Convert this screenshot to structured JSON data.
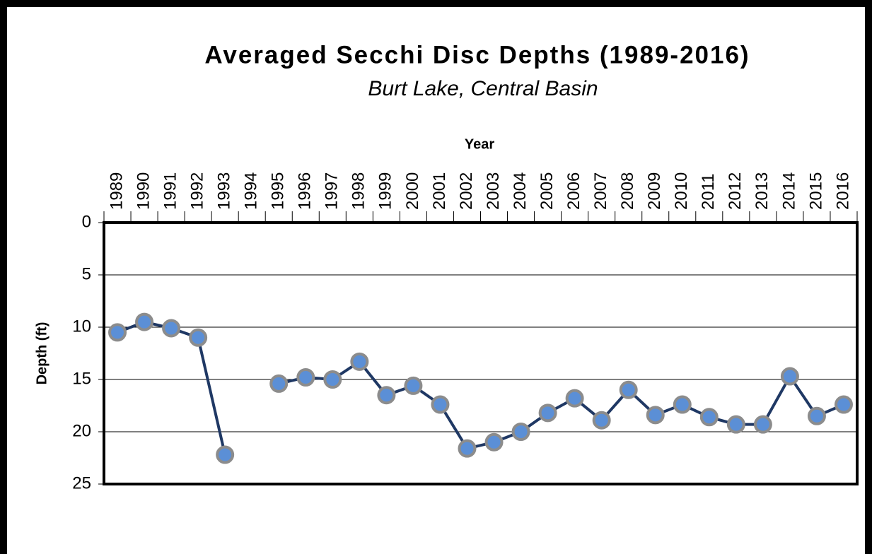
{
  "chart_data": {
    "type": "line",
    "title": "Averaged Secchi Disc Depths (1989-2016)",
    "subtitle": "Burt Lake, Central Basin",
    "x_label": "Year",
    "y_label": "Depth (ft)",
    "categories": [
      "1989",
      "1990",
      "1991",
      "1992",
      "1993",
      "1994",
      "1995",
      "1996",
      "1997",
      "1998",
      "1999",
      "2000",
      "2001",
      "2002",
      "2003",
      "2004",
      "2005",
      "2006",
      "2007",
      "2008",
      "2009",
      "2010",
      "2011",
      "2012",
      "2013",
      "2014",
      "2015",
      "2016"
    ],
    "series": [
      {
        "name": "Depth",
        "color": "#1f3864",
        "marker_color": "#5b8fd6",
        "values": [
          10.5,
          9.5,
          10.1,
          11.0,
          22.2,
          null,
          15.4,
          14.8,
          15.0,
          13.3,
          16.5,
          15.6,
          17.4,
          21.6,
          21.0,
          20.0,
          18.2,
          16.8,
          18.9,
          16.0,
          18.4,
          17.4,
          18.6,
          19.3,
          19.3,
          14.7,
          18.5,
          17.4
        ]
      }
    ],
    "ylim": [
      0,
      25
    ],
    "yticks": [
      0,
      5,
      10,
      15,
      20,
      25
    ],
    "y_inverted": true,
    "grid": true,
    "x_axis_position": "top",
    "legend": false
  }
}
